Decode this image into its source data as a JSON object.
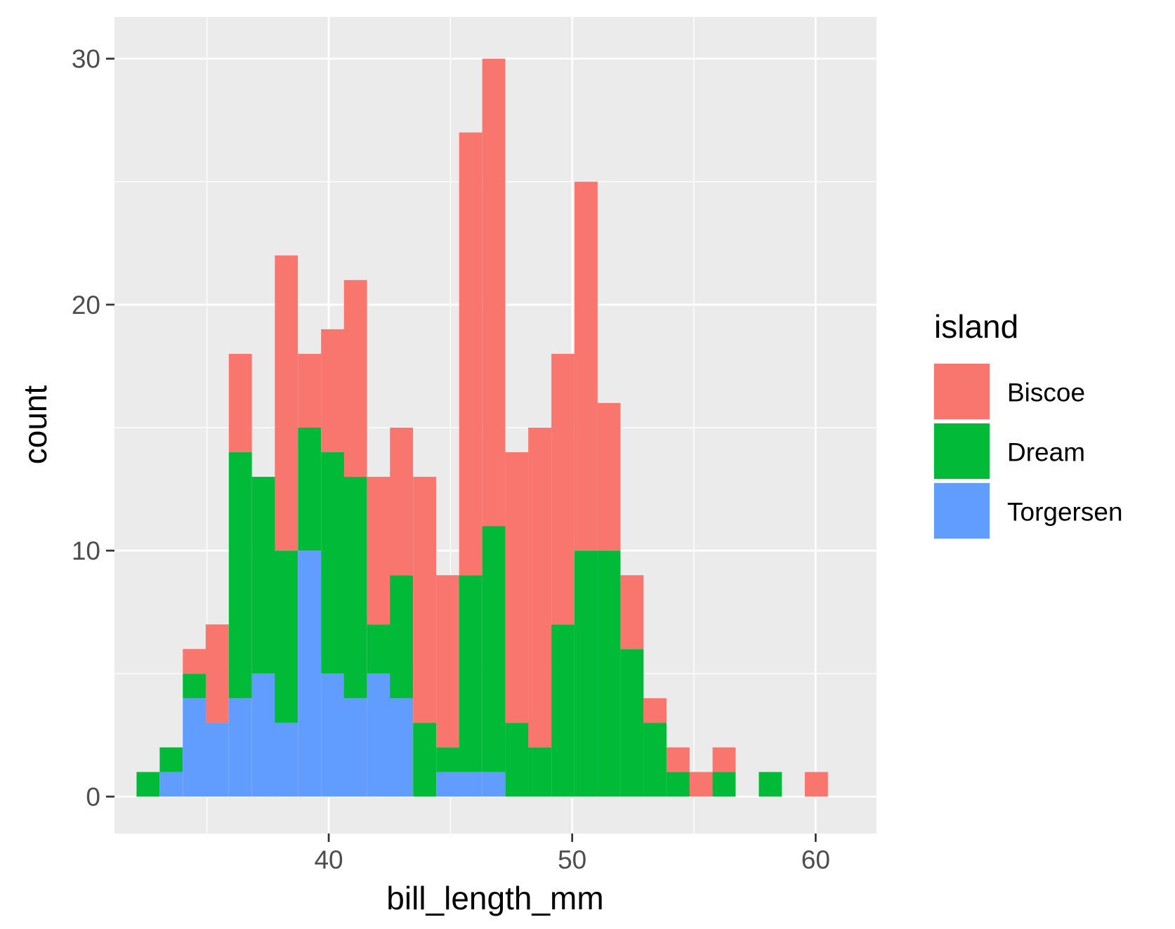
{
  "chart_data": {
    "type": "bar",
    "subtype": "stacked-histogram",
    "xlabel": "bill_length_mm",
    "ylabel": "count",
    "xlim": [
      31.2,
      62.5
    ],
    "ylim": [
      -1.5,
      31.7
    ],
    "x_ticks": [
      40,
      50,
      60
    ],
    "x_tick_labels": [
      "40",
      "50",
      "60"
    ],
    "y_ticks": [
      0,
      10,
      20,
      30
    ],
    "y_tick_labels": [
      "0",
      "10",
      "20",
      "30"
    ],
    "bin_width": 0.947,
    "bin_centers": [
      32.58,
      33.53,
      34.48,
      35.42,
      36.37,
      37.32,
      38.26,
      39.21,
      40.16,
      41.1,
      42.05,
      42.99,
      43.94,
      44.89,
      45.83,
      46.78,
      47.73,
      48.67,
      49.62,
      50.57,
      51.51,
      52.46,
      53.4,
      54.35,
      55.3,
      56.24,
      57.19,
      58.14,
      59.08,
      60.03
    ],
    "series": [
      {
        "name": "Torgersen",
        "color": "#619CFF",
        "values": [
          0,
          1,
          4,
          3,
          4,
          5,
          3,
          10,
          5,
          4,
          5,
          4,
          0,
          1,
          1,
          1,
          0,
          0,
          0,
          0,
          0,
          0,
          0,
          0,
          0,
          0,
          0,
          0,
          0,
          0
        ]
      },
      {
        "name": "Dream",
        "color": "#00BA38",
        "values": [
          1,
          1,
          1,
          0,
          10,
          8,
          7,
          5,
          9,
          9,
          2,
          5,
          3,
          1,
          8,
          10,
          3,
          2,
          7,
          10,
          10,
          6,
          3,
          1,
          0,
          1,
          0,
          1,
          0,
          0
        ]
      },
      {
        "name": "Biscoe",
        "color": "#F8766D",
        "values": [
          0,
          0,
          1,
          4,
          4,
          0,
          12,
          3,
          5,
          8,
          6,
          6,
          10,
          7,
          18,
          19,
          11,
          13,
          11,
          15,
          6,
          3,
          1,
          1,
          1,
          1,
          0,
          0,
          0,
          1
        ]
      }
    ],
    "legend": {
      "title": "island",
      "position": "right",
      "entries": [
        "Biscoe",
        "Dream",
        "Torgersen"
      ],
      "colors": [
        "#F8766D",
        "#00BA38",
        "#619CFF"
      ]
    },
    "grid": true,
    "background": "#EBEBEB"
  }
}
